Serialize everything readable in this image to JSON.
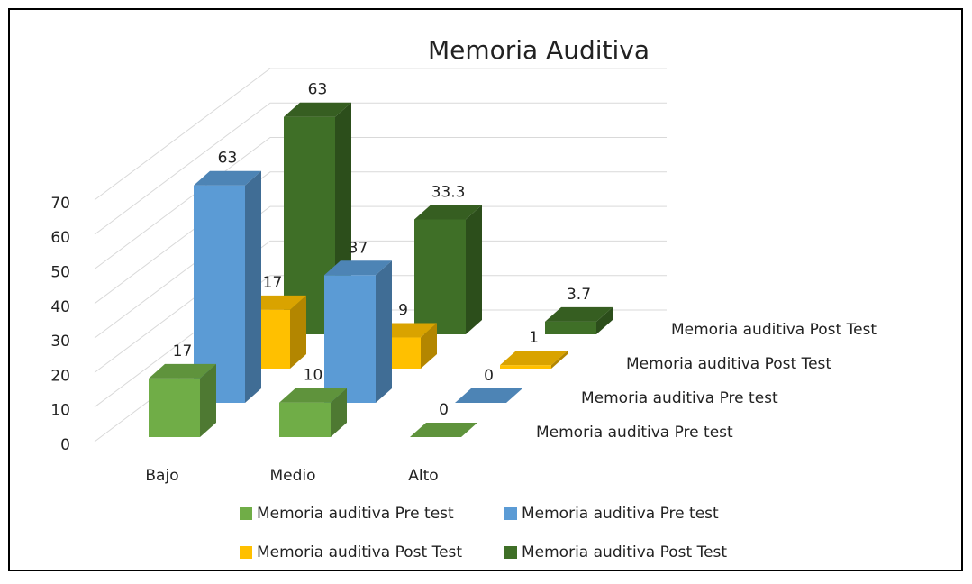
{
  "chart_data": {
    "type": "bar3d",
    "title": "Memoria Auditiva",
    "categories": [
      "Bajo",
      "Medio",
      "Alto"
    ],
    "series": [
      {
        "name": "Memoria auditiva Pre test",
        "color": "#70ad47",
        "values": [
          17,
          10,
          0
        ]
      },
      {
        "name": "Memoria auditiva Pre test",
        "color": "#5b9bd5",
        "values": [
          63,
          37,
          0
        ]
      },
      {
        "name": "Memoria auditiva Post Test",
        "color": "#ffc000",
        "values": [
          17,
          9,
          1
        ]
      },
      {
        "name": "Memoria auditiva Post Test",
        "color": "#3f6f27",
        "values": [
          63,
          33.3,
          3.7
        ]
      }
    ],
    "ylim": [
      0,
      70
    ],
    "yticks": [
      0,
      10,
      20,
      30,
      40,
      50,
      60,
      70
    ],
    "grid": true
  }
}
